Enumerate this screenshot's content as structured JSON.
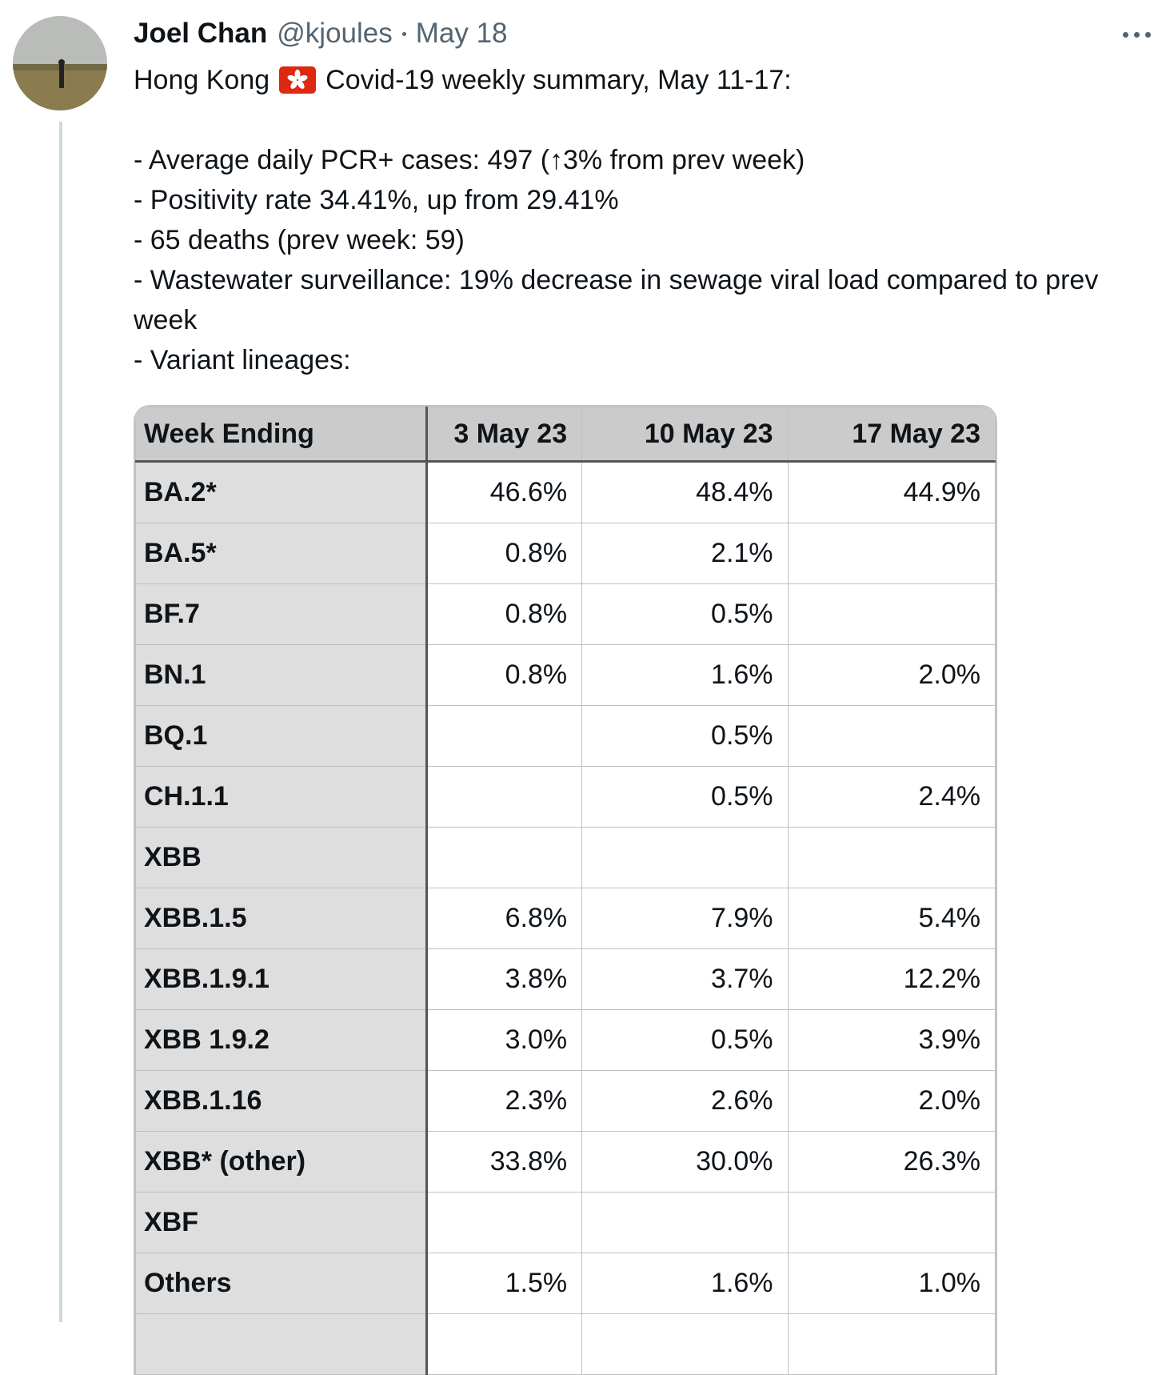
{
  "tweet": {
    "author_name": "Joel Chan",
    "handle": "@kjoules",
    "date": "May 18",
    "text_before_flag": "Hong Kong",
    "text_after_flag": "Covid-19 weekly summary, May 11-17:",
    "lines": [
      "- Average daily PCR+ cases: 497 (↑3% from prev week)",
      "- Positivity rate 34.41%, up from 29.41%",
      "- 65 deaths (prev week: 59)",
      "- Wastewater surveillance: 19% decrease in sewage viral load compared to prev week",
      "- Variant lineages:"
    ]
  },
  "table": {
    "header": [
      "Week Ending",
      "3 May 23",
      "10 May 23",
      "17 May 23"
    ],
    "rows": [
      [
        "BA.2*",
        "46.6%",
        "48.4%",
        "44.9%"
      ],
      [
        "BA.5*",
        "0.8%",
        "2.1%",
        null
      ],
      [
        "BF.7",
        "0.8%",
        "0.5%",
        null
      ],
      [
        "BN.1",
        "0.8%",
        "1.6%",
        "2.0%"
      ],
      [
        "BQ.1",
        null,
        "0.5%",
        null
      ],
      [
        "CH.1.1",
        null,
        "0.5%",
        "2.4%"
      ],
      [
        "XBB",
        null,
        null,
        null
      ],
      [
        "XBB.1.5",
        "6.8%",
        "7.9%",
        "5.4%"
      ],
      [
        "XBB.1.9.1",
        "3.8%",
        "3.7%",
        "12.2%"
      ],
      [
        "XBB 1.9.2",
        "3.0%",
        "0.5%",
        "3.9%"
      ],
      [
        "XBB.1.16",
        "2.3%",
        "2.6%",
        "2.0%"
      ],
      [
        "XBB* (other)",
        "33.8%",
        "30.0%",
        "26.3%"
      ],
      [
        "XBF",
        null,
        null,
        null
      ],
      [
        "Others",
        "1.5%",
        "1.6%",
        "1.0%"
      ]
    ]
  }
}
